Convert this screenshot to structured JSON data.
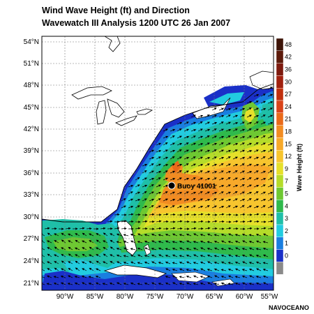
{
  "header": {
    "title": "Wind Wave Height (ft) and Direction",
    "subtitle": "Wavewatch III Analysis 1200 UTC 26 Jan 2007"
  },
  "map": {
    "lat_labels": [
      "54°N",
      "51°N",
      "48°N",
      "45°N",
      "42°N",
      "39°N",
      "36°N",
      "33°N",
      "30°N",
      "27°N",
      "24°N",
      "21°N"
    ],
    "lon_labels": [
      "90°W",
      "85°W",
      "80°W",
      "75°W",
      "70°W",
      "65°W",
      "60°W",
      "55°W"
    ],
    "buoy_label": "Buoy 41001",
    "extent": {
      "lon_min": -93,
      "lon_max": -55,
      "lat_min": 20,
      "lat_max": 55.5
    }
  },
  "legend": {
    "title": "Wave Height (ft)",
    "levels": [
      {
        "label": "48",
        "color": "#3d1408"
      },
      {
        "label": "42",
        "color": "#5c1a0a"
      },
      {
        "label": "36",
        "color": "#7d1a0e"
      },
      {
        "label": "30",
        "color": "#a0200e"
      },
      {
        "label": "27",
        "color": "#c0300e"
      },
      {
        "label": "24",
        "color": "#d9441a"
      },
      {
        "label": "21",
        "color": "#e96a1a"
      },
      {
        "label": "18",
        "color": "#f28c22"
      },
      {
        "label": "15",
        "color": "#f7a92a"
      },
      {
        "label": "12",
        "color": "#f7c52e"
      },
      {
        "label": "9",
        "color": "#e6e02a"
      },
      {
        "label": "7",
        "color": "#b5dc2a"
      },
      {
        "label": "5",
        "color": "#6ec832"
      },
      {
        "label": "4",
        "color": "#2fba4c"
      },
      {
        "label": "3",
        "color": "#1fbfa8"
      },
      {
        "label": "2",
        "color": "#22cce0"
      },
      {
        "label": "1",
        "color": "#1a7ee0"
      },
      {
        "label": "0",
        "color": "#1a30c8"
      },
      {
        "label": "",
        "color": "#8a8a8a"
      }
    ]
  },
  "credit": "NAVOCEANO"
}
